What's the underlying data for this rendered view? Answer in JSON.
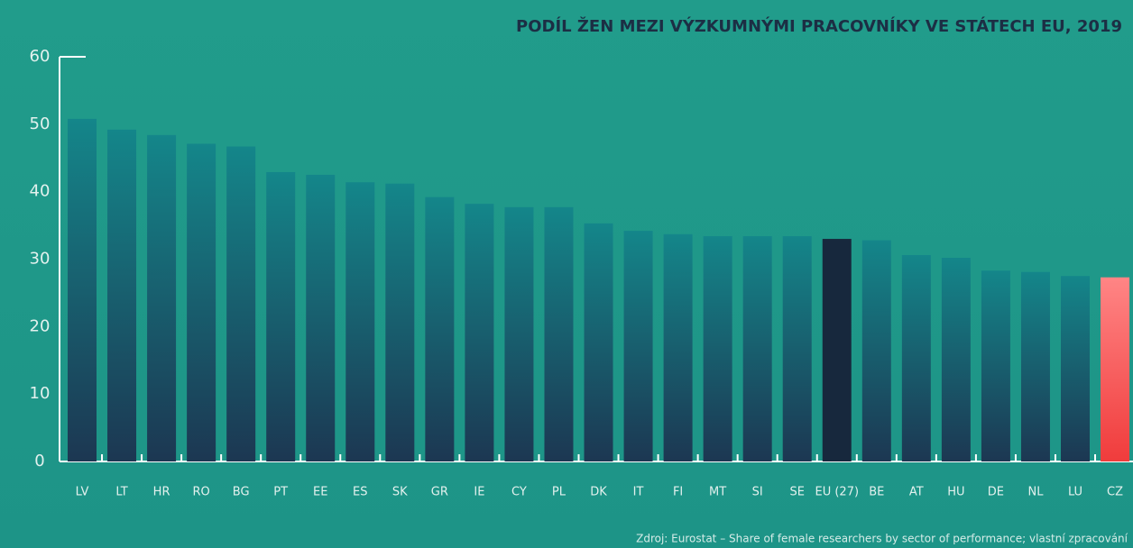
{
  "chart_data": {
    "type": "bar",
    "title": "PODÍL ŽEN MEZI VÝZKUMNÝMI PRACOVNÍKY VE STÁTECH EU, 2019",
    "source": "Zdroj: Eurostat – Share of female researchers by sector of performance; vlastní zpracování",
    "categories": [
      "LV",
      "LT",
      "HR",
      "RO",
      "BG",
      "PT",
      "EE",
      "ES",
      "SK",
      "GR",
      "IE",
      "CY",
      "PL",
      "DK",
      "IT",
      "FI",
      "MT",
      "SI",
      "SE",
      "EU (27)",
      "BE",
      "AT",
      "HU",
      "DE",
      "NL",
      "LU",
      "CZ"
    ],
    "values": [
      50.8,
      49.2,
      48.4,
      47.1,
      46.7,
      42.9,
      42.5,
      41.4,
      41.2,
      39.2,
      38.2,
      37.7,
      37.7,
      35.3,
      34.2,
      33.7,
      33.4,
      33.4,
      33.4,
      33.0,
      32.8,
      30.6,
      30.2,
      28.3,
      28.1,
      27.5,
      27.3
    ],
    "colors": [
      [
        "#14868a",
        "#1c3752"
      ],
      [
        "#14868a",
        "#1c3752"
      ],
      [
        "#14868a",
        "#1c3752"
      ],
      [
        "#14868a",
        "#1c3752"
      ],
      [
        "#14868a",
        "#1c3752"
      ],
      [
        "#14868a",
        "#1c3752"
      ],
      [
        "#14868a",
        "#1c3752"
      ],
      [
        "#14868a",
        "#1c3752"
      ],
      [
        "#14868a",
        "#1c3752"
      ],
      [
        "#14868a",
        "#1c3752"
      ],
      [
        "#14868a",
        "#1c3752"
      ],
      [
        "#14868a",
        "#1c3752"
      ],
      [
        "#14868a",
        "#1c3752"
      ],
      [
        "#14868a",
        "#1c3752"
      ],
      [
        "#14868a",
        "#1c3752"
      ],
      [
        "#14868a",
        "#1c3752"
      ],
      [
        "#14868a",
        "#1c3752"
      ],
      [
        "#14868a",
        "#1c3752"
      ],
      [
        "#14868a",
        "#1c3752"
      ],
      [
        "#17283d",
        "#17283d"
      ],
      [
        "#14868a",
        "#1c3752"
      ],
      [
        "#14868a",
        "#1c3752"
      ],
      [
        "#14868a",
        "#1c3752"
      ],
      [
        "#14868a",
        "#1c3752"
      ],
      [
        "#14868a",
        "#1c3752"
      ],
      [
        "#14868a",
        "#1c3752"
      ],
      [
        "#ff8585",
        "#f03c3c"
      ]
    ],
    "ylim": [
      0,
      60
    ],
    "yticks": [
      0,
      10,
      20,
      30,
      40,
      50,
      60
    ],
    "grid": false
  }
}
